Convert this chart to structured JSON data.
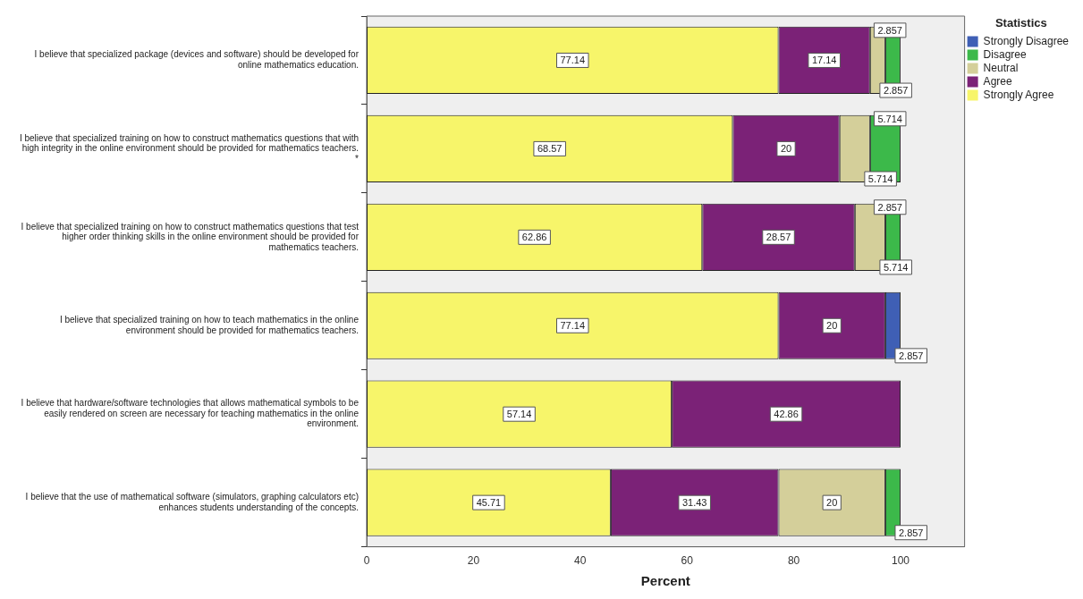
{
  "chart_data": {
    "type": "bar",
    "orientation": "horizontal",
    "stacked": true,
    "xlabel": "Percent",
    "legend_title": "Statistics",
    "legend": "top right",
    "data_labels": true,
    "grid": false,
    "categories": [
      "I believe that specialized package (devices and software) should be developed for online mathematics education.",
      "I believe that specialized training on how to construct mathematics questions that with high integrity in the online environment should be provided for mathematics teachers. *",
      "I believe that specialized training on how to construct mathematics questions that test higher order thinking skills in the online environment should be provided for mathematics teachers.",
      "I believe that specialized training on how to teach mathematics in the online environment should be provided for mathematics teachers.",
      "I believe that hardware/software technologies that allows mathematical symbols to be easily rendered on screen are necessary for teaching mathematics in the online environment.",
      "I believe that the use of mathematical software (simulators, graphing calculators etc) enhances students understanding of the concepts."
    ],
    "series": [
      {
        "name": "Strongly Agree",
        "color": "#f7f56a",
        "values": [
          77.14,
          68.57,
          62.86,
          77.14,
          57.14,
          45.71
        ]
      },
      {
        "name": "Agree",
        "color": "#7b2277",
        "values": [
          17.14,
          20,
          28.57,
          20,
          42.86,
          31.43
        ]
      },
      {
        "name": "Neutral",
        "color": "#d4cf9a",
        "values": [
          2.857,
          5.714,
          5.714,
          null,
          null,
          20
        ]
      },
      {
        "name": "Disagree",
        "color": "#3cb94a",
        "values": [
          2.857,
          5.714,
          2.857,
          null,
          null,
          2.857
        ]
      },
      {
        "name": "Strongly Disagree",
        "color": "#3f5fb5",
        "values": [
          null,
          null,
          null,
          2.857,
          null,
          null
        ]
      }
    ],
    "xlim": [
      0,
      112
    ],
    "xticks": [
      0,
      20,
      40,
      60,
      80,
      100
    ]
  }
}
